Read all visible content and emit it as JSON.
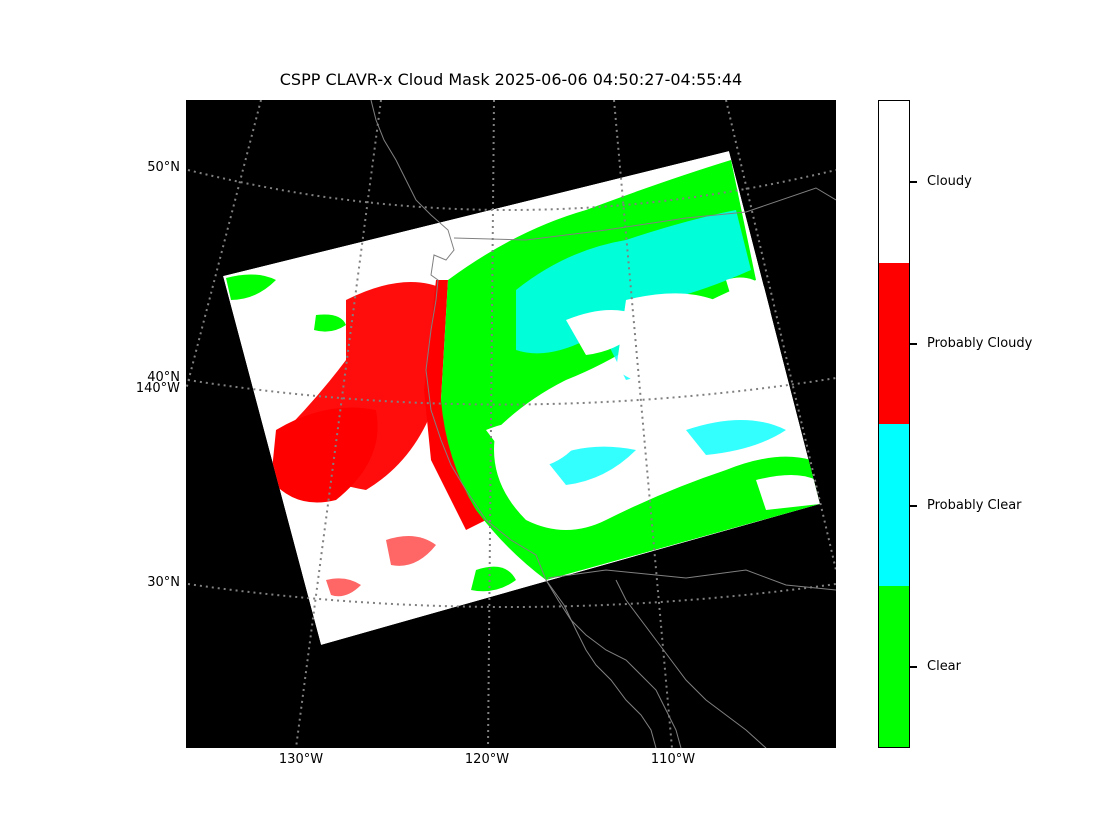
{
  "title": "CSPP CLAVR-x Cloud Mask 2025-06-06 04:50:27-04:55:44",
  "latitude_labels": [
    "50°N",
    "40°N",
    "30°N"
  ],
  "longitude_labels": [
    "130°W",
    "120°W",
    "110°W"
  ],
  "extra_longitude_label": "140°W",
  "colorbar": {
    "categories": [
      {
        "label": "Cloudy",
        "color": "#ffffff"
      },
      {
        "label": "Probably Cloudy",
        "color": "#ff0000"
      },
      {
        "label": "Probably Clear",
        "color": "#00ffff"
      },
      {
        "label": "Clear",
        "color": "#00ff00"
      }
    ]
  },
  "colors": {
    "background": "#000000",
    "grid": "#808080",
    "coastline": "#808080"
  }
}
